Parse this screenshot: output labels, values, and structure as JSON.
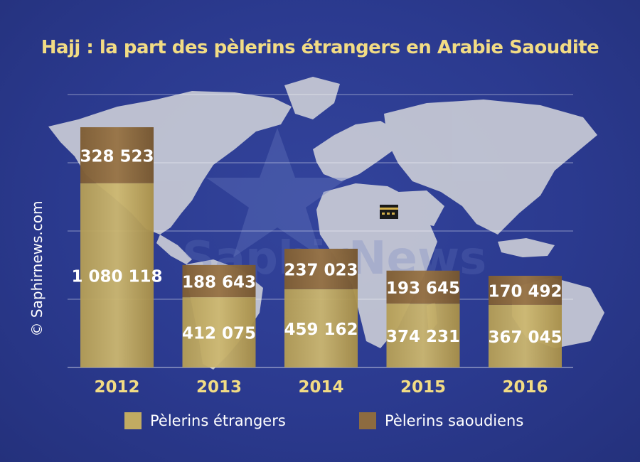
{
  "title": "Hajj : la part des pèlerins étrangers en Arabie Saoudite",
  "watermark": "© Saphirnews.com",
  "legend": {
    "foreign": "Pèlerins étrangers",
    "saudi": "Pèlerins saoudiens"
  },
  "colors": {
    "foreign": "#c1ab62",
    "saudi": "#8d6b40",
    "title": "#f2dc84",
    "background": "#2b3a8f",
    "map": "#c9cbd6"
  },
  "chart_data": {
    "type": "bar",
    "stacked": true,
    "categories": [
      "2012",
      "2013",
      "2014",
      "2015",
      "2016"
    ],
    "series": [
      {
        "name": "Pèlerins étrangers",
        "values": [
          1080118,
          412075,
          459162,
          374231,
          367045
        ],
        "labels": [
          "1 080 118",
          "412 075",
          "459 162",
          "374 231",
          "367 045"
        ]
      },
      {
        "name": "Pèlerins saoudiens",
        "values": [
          328523,
          188643,
          237023,
          193645,
          170492
        ],
        "labels": [
          "328 523",
          "188 643",
          "237 023",
          "193 645",
          "170 492"
        ]
      }
    ],
    "title": "Hajj : la part des pèlerins étrangers en Arabie Saoudite",
    "grid": true,
    "legend_position": "bottom"
  }
}
